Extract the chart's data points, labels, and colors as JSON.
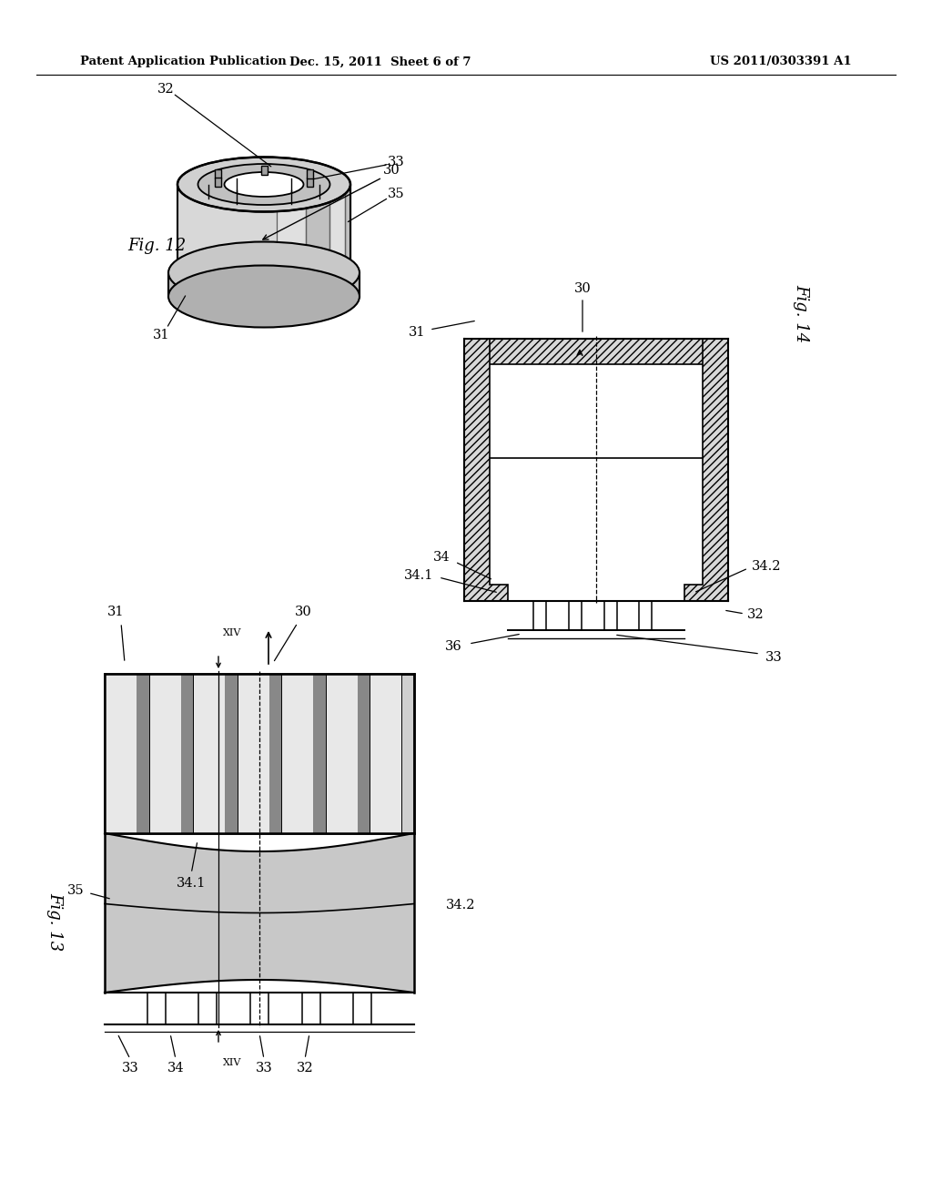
{
  "background_color": "#ffffff",
  "header_left": "Patent Application Publication",
  "header_mid": "Dec. 15, 2011  Sheet 6 of 7",
  "header_right": "US 2011/0303391 A1",
  "header_fontsize": 9.5,
  "fig_label_fontsize": 13,
  "ref_fontsize": 10.5,
  "line_color": "#000000",
  "hatch_color": "#000000",
  "fill_light": "#e8e8e8",
  "fill_mid": "#d0d0d0",
  "fill_dark": "#a0a0a0"
}
